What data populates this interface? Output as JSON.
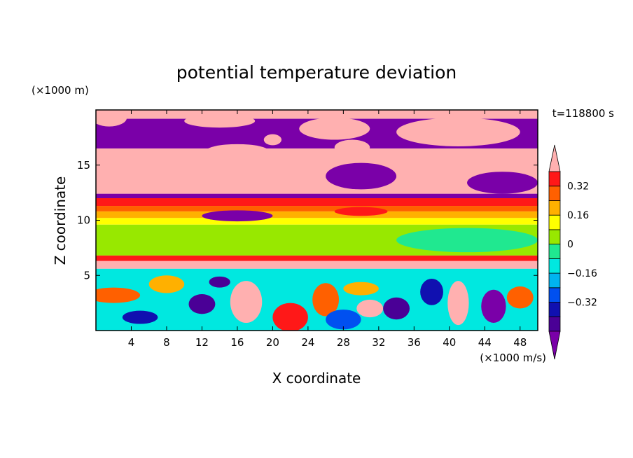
{
  "chart_data": {
    "type": "heatmap",
    "title": "potential temperature deviation",
    "xlabel": "X coordinate",
    "ylabel": "Z coordinate",
    "x_unit": "(×1000 m/s)",
    "y_unit": "(×1000 m)",
    "time_label": "t=118800 s",
    "xlim": [
      0,
      50
    ],
    "ylim": [
      0,
      20
    ],
    "x_ticks": [
      4,
      8,
      12,
      16,
      20,
      24,
      28,
      32,
      36,
      40,
      44,
      48
    ],
    "y_ticks": [
      5,
      10,
      15
    ],
    "colorbar": {
      "levels": [
        -0.48,
        -0.4,
        -0.32,
        -0.24,
        -0.16,
        -0.08,
        0,
        0.08,
        0.16,
        0.24,
        0.32,
        0.4
      ],
      "colors": [
        "#7a00a8",
        "#4a0096",
        "#1010b0",
        "#0050f0",
        "#00b4f0",
        "#00e8e0",
        "#20e890",
        "#98e800",
        "#ffff00",
        "#ffb000",
        "#ff6000",
        "#ff1818",
        "#ffb0b0"
      ],
      "tick_labels": [
        {
          "value": 0.32,
          "label": "0.32"
        },
        {
          "value": 0.16,
          "label": "0.16"
        },
        {
          "value": 0,
          "label": "0"
        },
        {
          "value": -0.16,
          "label": "−0.16"
        },
        {
          "value": -0.32,
          "label": "−0.32"
        }
      ]
    },
    "bands": [
      {
        "z": [
          19.2,
          20.0
        ],
        "value": 0.5
      },
      {
        "z": [
          16.5,
          19.2
        ],
        "value": -0.5
      },
      {
        "z": [
          12.4,
          16.5
        ],
        "value": 0.5
      },
      {
        "z": [
          12.0,
          12.4
        ],
        "value": -0.5
      },
      {
        "z": [
          11.3,
          12.0
        ],
        "value": 0.36
      },
      {
        "z": [
          10.8,
          11.3
        ],
        "value": 0.28
      },
      {
        "z": [
          10.2,
          10.8
        ],
        "value": 0.2
      },
      {
        "z": [
          9.6,
          10.2
        ],
        "value": 0.12
      },
      {
        "z": [
          6.8,
          9.6
        ],
        "value": 0.05
      },
      {
        "z": [
          6.3,
          6.8
        ],
        "value": 0.36
      },
      {
        "z": [
          5.6,
          6.3
        ],
        "value": 0.5
      },
      {
        "z": [
          0.0,
          5.6
        ],
        "value": -0.1
      }
    ],
    "blobs": [
      {
        "x": 1.5,
        "z": 19.3,
        "rx": 2,
        "rz": 0.8,
        "value": 0.5
      },
      {
        "x": 14,
        "z": 19.0,
        "rx": 4,
        "rz": 0.6,
        "value": 0.5
      },
      {
        "x": 27,
        "z": 18.3,
        "rx": 4,
        "rz": 1.0,
        "value": 0.5
      },
      {
        "x": 41,
        "z": 18.0,
        "rx": 7,
        "rz": 1.3,
        "value": 0.5
      },
      {
        "x": 16,
        "z": 16.3,
        "rx": 3.5,
        "rz": 0.6,
        "value": 0.5
      },
      {
        "x": 29,
        "z": 16.6,
        "rx": 2,
        "rz": 0.7,
        "value": 0.5
      },
      {
        "x": 20,
        "z": 17.3,
        "rx": 1,
        "rz": 0.5,
        "value": 0.5
      },
      {
        "x": 46,
        "z": 13.4,
        "rx": 4,
        "rz": 1.0,
        "value": -0.5
      },
      {
        "x": 30,
        "z": 14.0,
        "rx": 4,
        "rz": 1.2,
        "value": -0.5
      },
      {
        "x": 16,
        "z": 10.4,
        "rx": 4,
        "rz": 0.5,
        "value": -0.5
      },
      {
        "x": 30,
        "z": 10.8,
        "rx": 3,
        "rz": 0.4,
        "value": 0.36
      },
      {
        "x": 42,
        "z": 8.2,
        "rx": 8,
        "rz": 1.1,
        "value": -0.08
      },
      {
        "x": 2,
        "z": 3.2,
        "rx": 3,
        "rz": 0.7,
        "value": 0.3
      },
      {
        "x": 5,
        "z": 1.2,
        "rx": 2,
        "rz": 0.6,
        "value": -0.35
      },
      {
        "x": 12,
        "z": 2.4,
        "rx": 1.5,
        "rz": 0.9,
        "value": -0.45
      },
      {
        "x": 17,
        "z": 2.6,
        "rx": 1.8,
        "rz": 1.9,
        "value": 0.5
      },
      {
        "x": 22,
        "z": 1.2,
        "rx": 2,
        "rz": 1.3,
        "value": 0.36
      },
      {
        "x": 26,
        "z": 2.8,
        "rx": 1.5,
        "rz": 1.5,
        "value": 0.24
      },
      {
        "x": 28,
        "z": 1.0,
        "rx": 2,
        "rz": 0.9,
        "value": -0.3
      },
      {
        "x": 31,
        "z": 2.0,
        "rx": 1.5,
        "rz": 0.8,
        "value": 0.4
      },
      {
        "x": 34,
        "z": 2.0,
        "rx": 1.5,
        "rz": 1.0,
        "value": -0.45
      },
      {
        "x": 38,
        "z": 3.5,
        "rx": 1.3,
        "rz": 1.2,
        "value": -0.4
      },
      {
        "x": 41,
        "z": 2.5,
        "rx": 1.2,
        "rz": 2.0,
        "value": 0.4
      },
      {
        "x": 45,
        "z": 2.2,
        "rx": 1.4,
        "rz": 1.5,
        "value": -0.5
      },
      {
        "x": 48,
        "z": 3.0,
        "rx": 1.5,
        "rz": 1.0,
        "value": 0.3
      },
      {
        "x": 8,
        "z": 4.2,
        "rx": 2,
        "rz": 0.8,
        "value": 0.2
      },
      {
        "x": 14,
        "z": 4.4,
        "rx": 1.2,
        "rz": 0.5,
        "value": -0.45
      },
      {
        "x": 30,
        "z": 3.8,
        "rx": 2,
        "rz": 0.6,
        "value": 0.2
      }
    ]
  }
}
